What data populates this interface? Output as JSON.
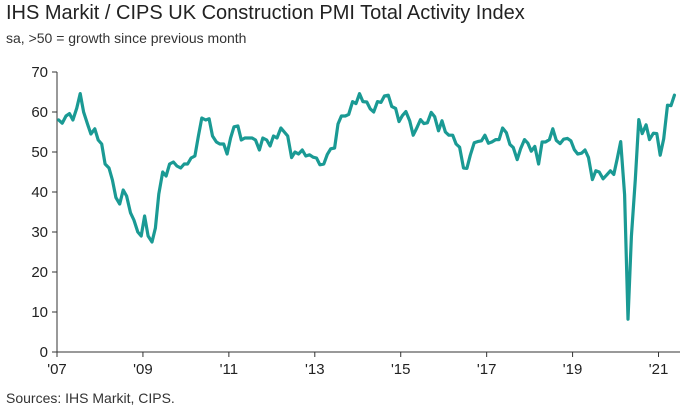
{
  "chart_data": {
    "type": "line",
    "title": "IHS Markit / CIPS UK Construction PMI Total Activity Index",
    "subtitle": "sa, >50 = growth since previous month",
    "source": "Sources: IHS Markit, CIPS.",
    "xlabel": "",
    "ylabel": "",
    "ylim": [
      0,
      70
    ],
    "yticks": [
      0,
      10,
      20,
      30,
      40,
      50,
      60,
      70
    ],
    "xlim": [
      2007.0,
      2021.5
    ],
    "xticks": [
      {
        "value": 2007,
        "label": "'07"
      },
      {
        "value": 2009,
        "label": "'09"
      },
      {
        "value": 2011,
        "label": "'11"
      },
      {
        "value": 2013,
        "label": "'13"
      },
      {
        "value": 2015,
        "label": "'15"
      },
      {
        "value": 2017,
        "label": "'17"
      },
      {
        "value": 2019,
        "label": "'19"
      },
      {
        "value": 2021,
        "label": "'21"
      }
    ],
    "grid": false,
    "series": [
      {
        "color": "#1a9a94",
        "points": [
          [
            2007.04,
            58
          ],
          [
            2007.12,
            57.2
          ],
          [
            2007.21,
            59
          ],
          [
            2007.29,
            59.6
          ],
          [
            2007.37,
            58
          ],
          [
            2007.46,
            61
          ],
          [
            2007.54,
            64.6
          ],
          [
            2007.62,
            60
          ],
          [
            2007.71,
            57
          ],
          [
            2007.79,
            54.5
          ],
          [
            2007.88,
            55.8
          ],
          [
            2007.96,
            53
          ],
          [
            2008.04,
            52
          ],
          [
            2008.12,
            47
          ],
          [
            2008.21,
            46
          ],
          [
            2008.29,
            43
          ],
          [
            2008.37,
            38.6
          ],
          [
            2008.46,
            37
          ],
          [
            2008.54,
            40.5
          ],
          [
            2008.62,
            39
          ],
          [
            2008.71,
            34.8
          ],
          [
            2008.79,
            33
          ],
          [
            2008.88,
            30
          ],
          [
            2008.96,
            29
          ],
          [
            2009.04,
            34
          ],
          [
            2009.12,
            29
          ],
          [
            2009.21,
            27.5
          ],
          [
            2009.29,
            31
          ],
          [
            2009.37,
            39.5
          ],
          [
            2009.46,
            45
          ],
          [
            2009.54,
            44
          ],
          [
            2009.62,
            47
          ],
          [
            2009.71,
            47.5
          ],
          [
            2009.79,
            46.5
          ],
          [
            2009.88,
            46
          ],
          [
            2009.96,
            47
          ],
          [
            2010.04,
            47
          ],
          [
            2010.12,
            48.5
          ],
          [
            2010.21,
            49
          ],
          [
            2010.29,
            54
          ],
          [
            2010.37,
            58.5
          ],
          [
            2010.46,
            58
          ],
          [
            2010.54,
            58.3
          ],
          [
            2010.62,
            54
          ],
          [
            2010.71,
            52.5
          ],
          [
            2010.79,
            52
          ],
          [
            2010.88,
            52
          ],
          [
            2010.96,
            49.5
          ],
          [
            2011.04,
            53.5
          ],
          [
            2011.12,
            56.3
          ],
          [
            2011.21,
            56.5
          ],
          [
            2011.29,
            53
          ],
          [
            2011.37,
            53.5
          ],
          [
            2011.46,
            53.5
          ],
          [
            2011.54,
            53.5
          ],
          [
            2011.62,
            53
          ],
          [
            2011.71,
            50.5
          ],
          [
            2011.79,
            53.5
          ],
          [
            2011.88,
            53
          ],
          [
            2011.96,
            51.5
          ],
          [
            2012.04,
            54
          ],
          [
            2012.12,
            53.5
          ],
          [
            2012.21,
            56
          ],
          [
            2012.29,
            55
          ],
          [
            2012.37,
            54
          ],
          [
            2012.46,
            48.6
          ],
          [
            2012.54,
            50
          ],
          [
            2012.62,
            49.5
          ],
          [
            2012.71,
            50.5
          ],
          [
            2012.79,
            49
          ],
          [
            2012.88,
            49.3
          ],
          [
            2012.96,
            48.7
          ],
          [
            2013.04,
            48.5
          ],
          [
            2013.12,
            46.8
          ],
          [
            2013.21,
            47
          ],
          [
            2013.29,
            49.4
          ],
          [
            2013.37,
            50.8
          ],
          [
            2013.46,
            51
          ],
          [
            2013.54,
            57
          ],
          [
            2013.62,
            59
          ],
          [
            2013.71,
            59
          ],
          [
            2013.79,
            59.4
          ],
          [
            2013.88,
            62.6
          ],
          [
            2013.96,
            62.1
          ],
          [
            2014.04,
            64.6
          ],
          [
            2014.12,
            62.6
          ],
          [
            2014.21,
            62.5
          ],
          [
            2014.29,
            60.8
          ],
          [
            2014.37,
            60
          ],
          [
            2014.46,
            62.6
          ],
          [
            2014.54,
            62.4
          ],
          [
            2014.62,
            64
          ],
          [
            2014.71,
            64.2
          ],
          [
            2014.79,
            61.4
          ],
          [
            2014.88,
            60.9
          ],
          [
            2014.96,
            57.6
          ],
          [
            2015.04,
            59.1
          ],
          [
            2015.12,
            60.1
          ],
          [
            2015.21,
            57.8
          ],
          [
            2015.29,
            54.2
          ],
          [
            2015.37,
            55.9
          ],
          [
            2015.46,
            58.1
          ],
          [
            2015.54,
            57.1
          ],
          [
            2015.62,
            57.3
          ],
          [
            2015.71,
            59.9
          ],
          [
            2015.79,
            58.8
          ],
          [
            2015.88,
            55.3
          ],
          [
            2015.96,
            57.8
          ],
          [
            2016.04,
            55
          ],
          [
            2016.12,
            54.2
          ],
          [
            2016.21,
            54.2
          ],
          [
            2016.29,
            52
          ],
          [
            2016.37,
            51.2
          ],
          [
            2016.46,
            46
          ],
          [
            2016.54,
            45.9
          ],
          [
            2016.62,
            49.2
          ],
          [
            2016.71,
            52.3
          ],
          [
            2016.79,
            52.6
          ],
          [
            2016.88,
            52.8
          ],
          [
            2016.96,
            54.2
          ],
          [
            2017.04,
            52.2
          ],
          [
            2017.12,
            52.5
          ],
          [
            2017.21,
            53.1
          ],
          [
            2017.29,
            53.1
          ],
          [
            2017.37,
            56
          ],
          [
            2017.46,
            54.8
          ],
          [
            2017.54,
            51.9
          ],
          [
            2017.62,
            51.1
          ],
          [
            2017.71,
            48.1
          ],
          [
            2017.79,
            50.8
          ],
          [
            2017.88,
            53.1
          ],
          [
            2017.96,
            52.2
          ],
          [
            2018.04,
            50.2
          ],
          [
            2018.12,
            51.4
          ],
          [
            2018.21,
            47
          ],
          [
            2018.29,
            52.5
          ],
          [
            2018.37,
            52.5
          ],
          [
            2018.46,
            53.1
          ],
          [
            2018.54,
            55.8
          ],
          [
            2018.62,
            52.9
          ],
          [
            2018.71,
            52.1
          ],
          [
            2018.79,
            53.2
          ],
          [
            2018.88,
            53.4
          ],
          [
            2018.96,
            52.8
          ],
          [
            2019.04,
            50.6
          ],
          [
            2019.12,
            49.5
          ],
          [
            2019.21,
            49.7
          ],
          [
            2019.29,
            50.5
          ],
          [
            2019.37,
            48.6
          ],
          [
            2019.46,
            43.1
          ],
          [
            2019.54,
            45.3
          ],
          [
            2019.62,
            45
          ],
          [
            2019.71,
            43.3
          ],
          [
            2019.79,
            44.2
          ],
          [
            2019.88,
            45.3
          ],
          [
            2019.96,
            44.4
          ],
          [
            2020.04,
            48.4
          ],
          [
            2020.12,
            52.6
          ],
          [
            2020.21,
            39.3
          ],
          [
            2020.29,
            8.2
          ],
          [
            2020.37,
            28.9
          ],
          [
            2020.46,
            43.1
          ],
          [
            2020.54,
            58.1
          ],
          [
            2020.62,
            54.6
          ],
          [
            2020.71,
            56.8
          ],
          [
            2020.79,
            53.1
          ],
          [
            2020.88,
            54.7
          ],
          [
            2020.96,
            54.6
          ],
          [
            2021.04,
            49.2
          ],
          [
            2021.12,
            53.3
          ],
          [
            2021.21,
            61.7
          ],
          [
            2021.29,
            61.6
          ],
          [
            2021.37,
            64.2
          ]
        ]
      }
    ]
  }
}
